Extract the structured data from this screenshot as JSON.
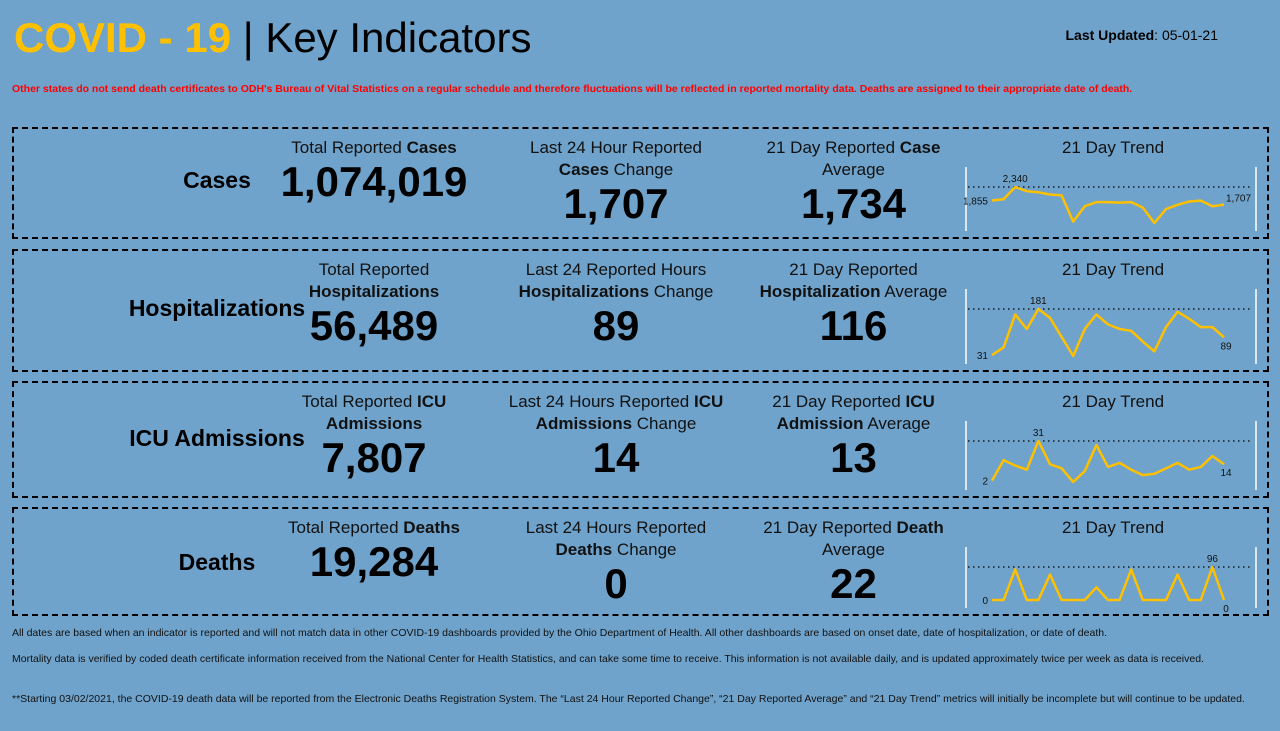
{
  "header": {
    "title_accent": "COVID - 19",
    "title_sep": " | ",
    "title_main": "Key Indicators",
    "updated_label": "Last Updated",
    "updated_value": ": 05-01-21"
  },
  "notice": "Other states do not send death certificates to ODH's Bureau of Vital Statistics on a regular schedule and therefore fluctuations will be reflected in reported mortality data. Deaths are assigned to their appropriate date of death.",
  "colors": {
    "accent": "#ffc000",
    "background": "#6fa3cb",
    "notice": "#ff0000",
    "trend_line": "#ffc000"
  },
  "rows": [
    {
      "label": "Cases",
      "total": {
        "pre": "Total Reported ",
        "bold": "Cases",
        "post": "",
        "value": "1,074,019"
      },
      "change": {
        "pre": "Last 24 Hour Reported ",
        "bold": "Cases",
        "post": " Change",
        "value": "1,707"
      },
      "average": {
        "pre": "21 Day Reported ",
        "bold": "Case",
        "post": " Average",
        "value": "1,734"
      },
      "trend": {
        "title": "21 Day Trend",
        "first_label": "1,855",
        "max_label": "2,340",
        "last_label": "1,707",
        "values": [
          1855,
          1900,
          2340,
          2190,
          2150,
          2070,
          2040,
          1100,
          1650,
          1800,
          1800,
          1780,
          1800,
          1600,
          1050,
          1550,
          1700,
          1820,
          1850,
          1650,
          1707
        ]
      }
    },
    {
      "label": "Hospitalizations",
      "total": {
        "pre": "Total Reported ",
        "bold": "Hospitalizations",
        "post": "",
        "value": "56,489"
      },
      "change": {
        "pre": "Last 24 Reported Hours ",
        "bold": "Hospitalizations",
        "post": " Change",
        "value": "89"
      },
      "average": {
        "pre": "21 Day Reported ",
        "bold": "Hospitalization",
        "post": " Average",
        "value": "116"
      },
      "trend": {
        "title": "21 Day Trend",
        "first_label": "31",
        "max_label": "181",
        "last_label": "89",
        "values": [
          31,
          56,
          163,
          116,
          181,
          152,
          90,
          28,
          116,
          163,
          131,
          116,
          110,
          75,
          43,
          122,
          172,
          149,
          122,
          122,
          89
        ]
      }
    },
    {
      "label": "ICU Admissions",
      "total": {
        "pre": "Total Reported ",
        "bold": "ICU Admissions",
        "post": "",
        "value": "7,807"
      },
      "change": {
        "pre": "Last 24 Hours Reported ",
        "bold": "ICU Admissions",
        "post": " Change",
        "value": "14"
      },
      "average": {
        "pre": "21 Day Reported ",
        "bold": "ICU Admission",
        "post": " Average",
        "value": "13"
      },
      "trend": {
        "title": "21 Day Trend",
        "first_label": "2",
        "max_label": "31",
        "last_label": "14",
        "values": [
          2,
          17,
          13,
          10,
          31,
          14,
          11,
          1,
          9,
          28,
          12,
          15,
          10,
          6,
          7,
          11,
          15,
          10,
          12,
          20,
          14
        ]
      }
    },
    {
      "label": "Deaths",
      "total": {
        "pre": "Total Reported ",
        "bold": "Deaths",
        "post": "",
        "value": "19,284"
      },
      "change": {
        "pre": "Last 24 Hours Reported ",
        "bold": "Deaths",
        "post": " Change",
        "value": "0"
      },
      "average": {
        "pre": "21 Day Reported ",
        "bold": "Death",
        "post": " Average",
        "value": "22"
      },
      "trend": {
        "title": "21 Day Trend",
        "first_label": "0",
        "max_label": "96",
        "last_label": "0",
        "values": [
          0,
          0,
          89,
          0,
          0,
          74,
          0,
          0,
          0,
          37,
          0,
          0,
          89,
          0,
          0,
          0,
          74,
          0,
          0,
          96,
          0
        ]
      }
    }
  ],
  "footer": [
    "All dates are based when an indicator is reported and will not match data in other COVID-19 dashboards provided by the Ohio Department of Health. All other dashboards are based on onset date, date of hospitalization, or date of death.",
    "Mortality data is verified by coded death certificate information received from the National Center for Health Statistics, and can take some time to receive. This information is not available daily, and is updated approximately twice per week as data is received.",
    "**Starting 03/02/2021, the COVID-19 death data will be reported from the Electronic Deaths Registration System. The “Last 24 Hour Reported Change”, “21 Day Reported Average” and “21 Day Trend” metrics will initially be incomplete but will continue to be updated."
  ]
}
